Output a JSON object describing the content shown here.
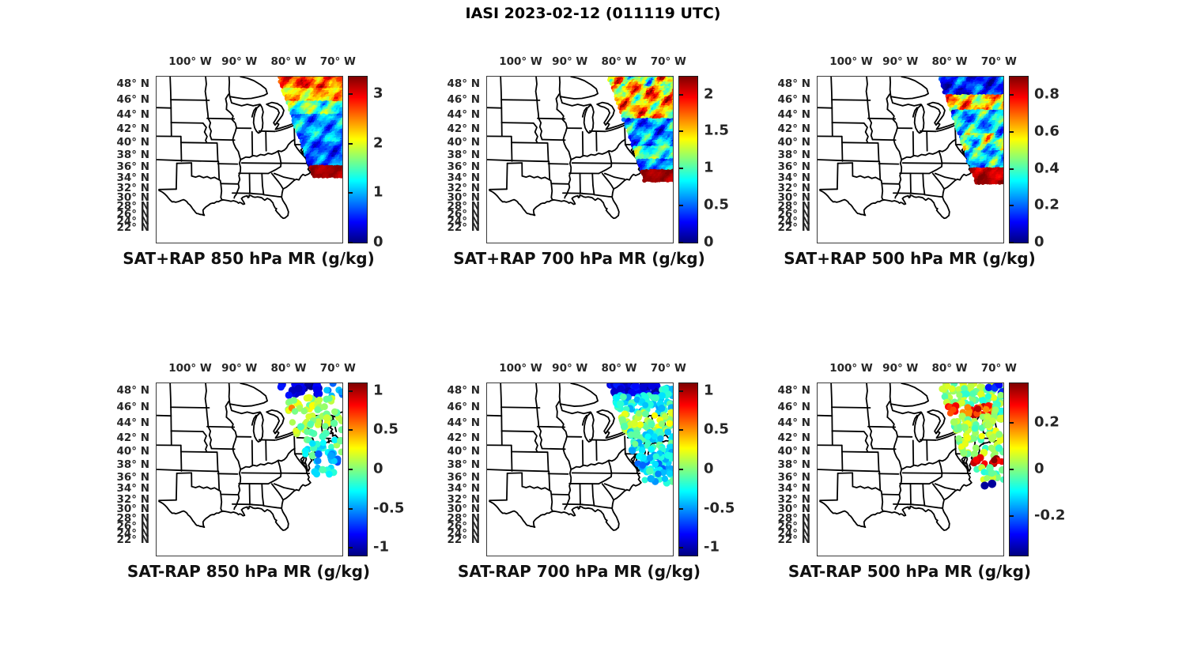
{
  "figure": {
    "title": "IASI 2023-02-12 (011119 UTC)"
  },
  "axes": {
    "lon_ticks": [
      {
        "lon": 100,
        "label": "100° W"
      },
      {
        "lon": 90,
        "label": "90° W"
      },
      {
        "lon": 80,
        "label": "80° W"
      },
      {
        "lon": 70,
        "label": "70° W"
      }
    ],
    "lat_ticks": [
      {
        "lat": 48,
        "label": "48° N"
      },
      {
        "lat": 46,
        "label": "46° N"
      },
      {
        "lat": 44,
        "label": "44° N"
      },
      {
        "lat": 42,
        "label": "42° N"
      },
      {
        "lat": 40,
        "label": "40° N"
      },
      {
        "lat": 38,
        "label": "38° N"
      },
      {
        "lat": 36,
        "label": "36° N"
      },
      {
        "lat": 34,
        "label": "34° N"
      },
      {
        "lat": 32,
        "label": "32° N"
      },
      {
        "lat": 30,
        "label": "30° N"
      },
      {
        "lat": 28,
        "label": "28° N"
      },
      {
        "lat": 26,
        "label": "26° N"
      },
      {
        "lat": 24,
        "label": "24° N"
      },
      {
        "lat": 22,
        "label": "22° N"
      }
    ]
  },
  "colors": {
    "colormap": "jet",
    "jet_stops": [
      "#00007F",
      "#0000FF",
      "#00FFFF",
      "#FFFF00",
      "#FF0000",
      "#7F0000"
    ],
    "map_line": "#000000",
    "tick_text": "#262626",
    "title_text": "#111111"
  },
  "chart_data": [
    {
      "id": "sat-plus-rap-850",
      "type": "map-scatter",
      "row": 0,
      "col": 0,
      "title": "SAT+RAP 850 hPa MR (g/kg)",
      "units": "g/kg",
      "mode": "dense",
      "fymax": 0.605,
      "colorbar": {
        "min": 0,
        "max": 3.35,
        "ticks": [
          {
            "v": 0,
            "label": "0"
          },
          {
            "v": 1,
            "label": "1"
          },
          {
            "v": 2,
            "label": "2"
          },
          {
            "v": 3,
            "label": "3"
          }
        ]
      },
      "bands": [
        [
          0.0,
          0.07,
          2.7,
          0.5
        ],
        [
          0.07,
          0.15,
          2.25,
          0.45
        ],
        [
          0.15,
          0.23,
          1.5,
          0.55
        ],
        [
          0.23,
          0.4,
          0.95,
          0.45
        ],
        [
          0.4,
          0.54,
          0.7,
          0.4
        ],
        [
          0.54,
          0.605,
          3.25,
          0.12
        ]
      ]
    },
    {
      "id": "sat-plus-rap-700",
      "type": "map-scatter",
      "row": 0,
      "col": 1,
      "title": "SAT+RAP 700 hPa MR (g/kg)",
      "units": "g/kg",
      "mode": "dense",
      "fymax": 0.625,
      "colorbar": {
        "min": 0,
        "max": 2.24,
        "ticks": [
          {
            "v": 0,
            "label": "0"
          },
          {
            "v": 0.5,
            "label": "0.5"
          },
          {
            "v": 1,
            "label": "1"
          },
          {
            "v": 1.5,
            "label": "1.5"
          },
          {
            "v": 2,
            "label": "2"
          }
        ]
      },
      "bands": [
        [
          0.0,
          0.06,
          1.3,
          0.65
        ],
        [
          0.06,
          0.15,
          1.55,
          0.55
        ],
        [
          0.15,
          0.25,
          1.5,
          0.5
        ],
        [
          0.25,
          0.42,
          0.62,
          0.4
        ],
        [
          0.42,
          0.5,
          1.0,
          0.35
        ],
        [
          0.5,
          0.565,
          0.55,
          0.3
        ],
        [
          0.565,
          0.625,
          2.18,
          0.08
        ]
      ]
    },
    {
      "id": "sat-plus-rap-500",
      "type": "map-scatter",
      "row": 0,
      "col": 2,
      "title": "SAT+RAP 500 hPa MR (g/kg)",
      "units": "g/kg",
      "mode": "dense",
      "fymax": 0.645,
      "colorbar": {
        "min": 0,
        "max": 0.9,
        "ticks": [
          {
            "v": 0,
            "label": "0"
          },
          {
            "v": 0.2,
            "label": "0.2"
          },
          {
            "v": 0.4,
            "label": "0.4"
          },
          {
            "v": 0.6,
            "label": "0.6"
          },
          {
            "v": 0.8,
            "label": "0.8"
          }
        ]
      },
      "bands": [
        [
          0.0,
          0.12,
          0.14,
          0.12
        ],
        [
          0.12,
          0.2,
          0.6,
          0.18
        ],
        [
          0.2,
          0.34,
          0.3,
          0.16
        ],
        [
          0.34,
          0.45,
          0.42,
          0.24
        ],
        [
          0.45,
          0.55,
          0.3,
          0.16
        ],
        [
          0.55,
          0.645,
          0.85,
          0.06
        ]
      ]
    },
    {
      "id": "sat-minus-rap-850",
      "type": "map-scatter",
      "row": 1,
      "col": 0,
      "title": "SAT-RAP 850 hPa MR (g/kg)",
      "units": "g/kg",
      "mode": "dots",
      "fymax": 0.56,
      "colorbar": {
        "min": -1.1,
        "max": 1.1,
        "ticks": [
          {
            "v": -1,
            "label": "-1"
          },
          {
            "v": -0.5,
            "label": "-0.5"
          },
          {
            "v": 0,
            "label": "0"
          },
          {
            "v": 0.5,
            "label": "0.5"
          },
          {
            "v": 1,
            "label": "1"
          }
        ]
      },
      "clusters": [
        [
          0.0,
          0.07,
          0.66,
          0.9,
          22,
          -0.95,
          0.15,
          4.5
        ],
        [
          0.0,
          0.08,
          0.9,
          1.0,
          8,
          -0.45,
          0.2,
          4.0
        ],
        [
          0.08,
          0.16,
          0.68,
          0.95,
          30,
          0.1,
          0.15,
          4.0
        ],
        [
          0.12,
          0.15,
          0.72,
          0.76,
          1,
          0.55,
          0.0,
          4.0
        ],
        [
          0.16,
          0.3,
          0.72,
          1.0,
          40,
          0.05,
          0.15,
          4.0
        ],
        [
          0.3,
          0.42,
          0.8,
          1.0,
          25,
          -0.15,
          0.2,
          4.0
        ],
        [
          0.4,
          0.5,
          0.86,
          1.0,
          16,
          -0.5,
          0.15,
          4.0
        ],
        [
          0.5,
          0.56,
          0.84,
          0.96,
          6,
          -0.2,
          0.15,
          4.0
        ]
      ]
    },
    {
      "id": "sat-minus-rap-700",
      "type": "map-scatter",
      "row": 1,
      "col": 1,
      "title": "SAT-RAP 700 hPa MR (g/kg)",
      "units": "g/kg",
      "mode": "dots",
      "fymax": 0.58,
      "colorbar": {
        "min": -1.1,
        "max": 1.1,
        "ticks": [
          {
            "v": -1,
            "label": "-1"
          },
          {
            "v": -0.5,
            "label": "-0.5"
          },
          {
            "v": 0,
            "label": "0"
          },
          {
            "v": 0.5,
            "label": "0.5"
          },
          {
            "v": 1,
            "label": "1"
          }
        ]
      },
      "clusters": [
        [
          0.0,
          0.07,
          0.66,
          0.93,
          60,
          -0.9,
          0.12,
          4.5
        ],
        [
          0.02,
          0.1,
          0.93,
          1.0,
          12,
          -0.35,
          0.2,
          4.0
        ],
        [
          0.07,
          0.17,
          0.68,
          1.0,
          55,
          -0.3,
          0.2,
          4.0
        ],
        [
          0.17,
          0.28,
          0.7,
          1.0,
          60,
          0.1,
          0.18,
          4.0
        ],
        [
          0.28,
          0.4,
          0.76,
          1.0,
          55,
          -0.25,
          0.2,
          4.0
        ],
        [
          0.4,
          0.5,
          0.8,
          1.0,
          40,
          -0.4,
          0.2,
          4.0
        ],
        [
          0.5,
          0.58,
          0.84,
          1.0,
          20,
          -0.3,
          0.2,
          4.0
        ]
      ]
    },
    {
      "id": "sat-minus-rap-500",
      "type": "map-scatter",
      "row": 1,
      "col": 2,
      "title": "SAT-RAP 500 hPa MR (g/kg)",
      "units": "g/kg",
      "mode": "dots",
      "fymax": 0.62,
      "colorbar": {
        "min": -0.37,
        "max": 0.37,
        "ticks": [
          {
            "v": -0.2,
            "label": "-0.2"
          },
          {
            "v": 0,
            "label": "0"
          },
          {
            "v": 0.2,
            "label": "0.2"
          }
        ]
      },
      "clusters": [
        [
          0.0,
          0.06,
          0.66,
          1.0,
          35,
          0.02,
          0.05,
          4.0
        ],
        [
          0.0,
          0.07,
          0.92,
          1.0,
          7,
          -0.3,
          0.05,
          4.0
        ],
        [
          0.06,
          0.13,
          0.68,
          1.0,
          45,
          0.0,
          0.06,
          4.0
        ],
        [
          0.13,
          0.19,
          0.7,
          0.95,
          30,
          0.24,
          0.08,
          4.0
        ],
        [
          0.13,
          0.19,
          0.95,
          1.0,
          8,
          -0.05,
          0.08,
          4.0
        ],
        [
          0.19,
          0.42,
          0.72,
          1.0,
          90,
          0.02,
          0.06,
          4.0
        ],
        [
          0.42,
          0.48,
          0.82,
          1.0,
          16,
          0.3,
          0.06,
          4.0
        ],
        [
          0.48,
          0.56,
          0.84,
          1.0,
          18,
          0.0,
          0.06,
          4.0
        ],
        [
          0.56,
          0.61,
          0.87,
          0.95,
          2,
          -0.35,
          0.0,
          5.0
        ]
      ]
    }
  ]
}
